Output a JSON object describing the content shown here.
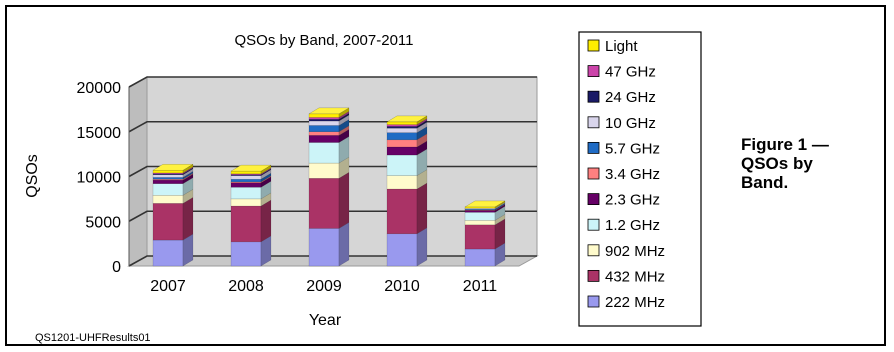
{
  "figure": {
    "caption_lines": [
      "Figure 1 —",
      "QSOs by",
      "Band."
    ],
    "source_id": "QS1201-UHFResults01"
  },
  "chart_data": {
    "type": "bar",
    "stacked": true,
    "three_d": true,
    "title": "QSOs by Band, 2007-2011",
    "xlabel": "Year",
    "ylabel": "QSOs",
    "ylim": [
      0,
      20000
    ],
    "yticks": [
      "0",
      "5000",
      "10000",
      "15000",
      "20000"
    ],
    "grid": true,
    "legend_position": "right",
    "categories": [
      "2007",
      "2008",
      "2009",
      "2010",
      "2011"
    ],
    "series": [
      {
        "name": "222 MHz",
        "color": "#9999ee",
        "values": [
          2900,
          2700,
          4200,
          3600,
          1900
        ]
      },
      {
        "name": "432 MHz",
        "color": "#aa3366",
        "values": [
          4100,
          4000,
          5600,
          5000,
          2700
        ]
      },
      {
        "name": "902 MHz",
        "color": "#fffbcc",
        "values": [
          900,
          800,
          1700,
          1500,
          500
        ]
      },
      {
        "name": "1.2 GHz",
        "color": "#ccf4f8",
        "values": [
          1300,
          1300,
          2300,
          2300,
          900
        ]
      },
      {
        "name": "2.3 GHz",
        "color": "#660066",
        "values": [
          400,
          500,
          800,
          900,
          200
        ]
      },
      {
        "name": "3.4 GHz",
        "color": "#ff8080",
        "values": [
          100,
          100,
          400,
          800,
          50
        ]
      },
      {
        "name": "5.7 GHz",
        "color": "#1f6bc4",
        "values": [
          200,
          300,
          700,
          800,
          100
        ]
      },
      {
        "name": "10 GHz",
        "color": "#d9d5ec",
        "values": [
          300,
          400,
          500,
          500,
          100
        ]
      },
      {
        "name": "24 GHz",
        "color": "#1a1a66",
        "values": [
          100,
          100,
          200,
          200,
          0
        ]
      },
      {
        "name": "47 GHz",
        "color": "#cc44aa",
        "values": [
          100,
          100,
          200,
          200,
          0
        ]
      },
      {
        "name": "Light",
        "color": "#ffee00",
        "values": [
          300,
          300,
          400,
          300,
          150
        ]
      }
    ]
  }
}
